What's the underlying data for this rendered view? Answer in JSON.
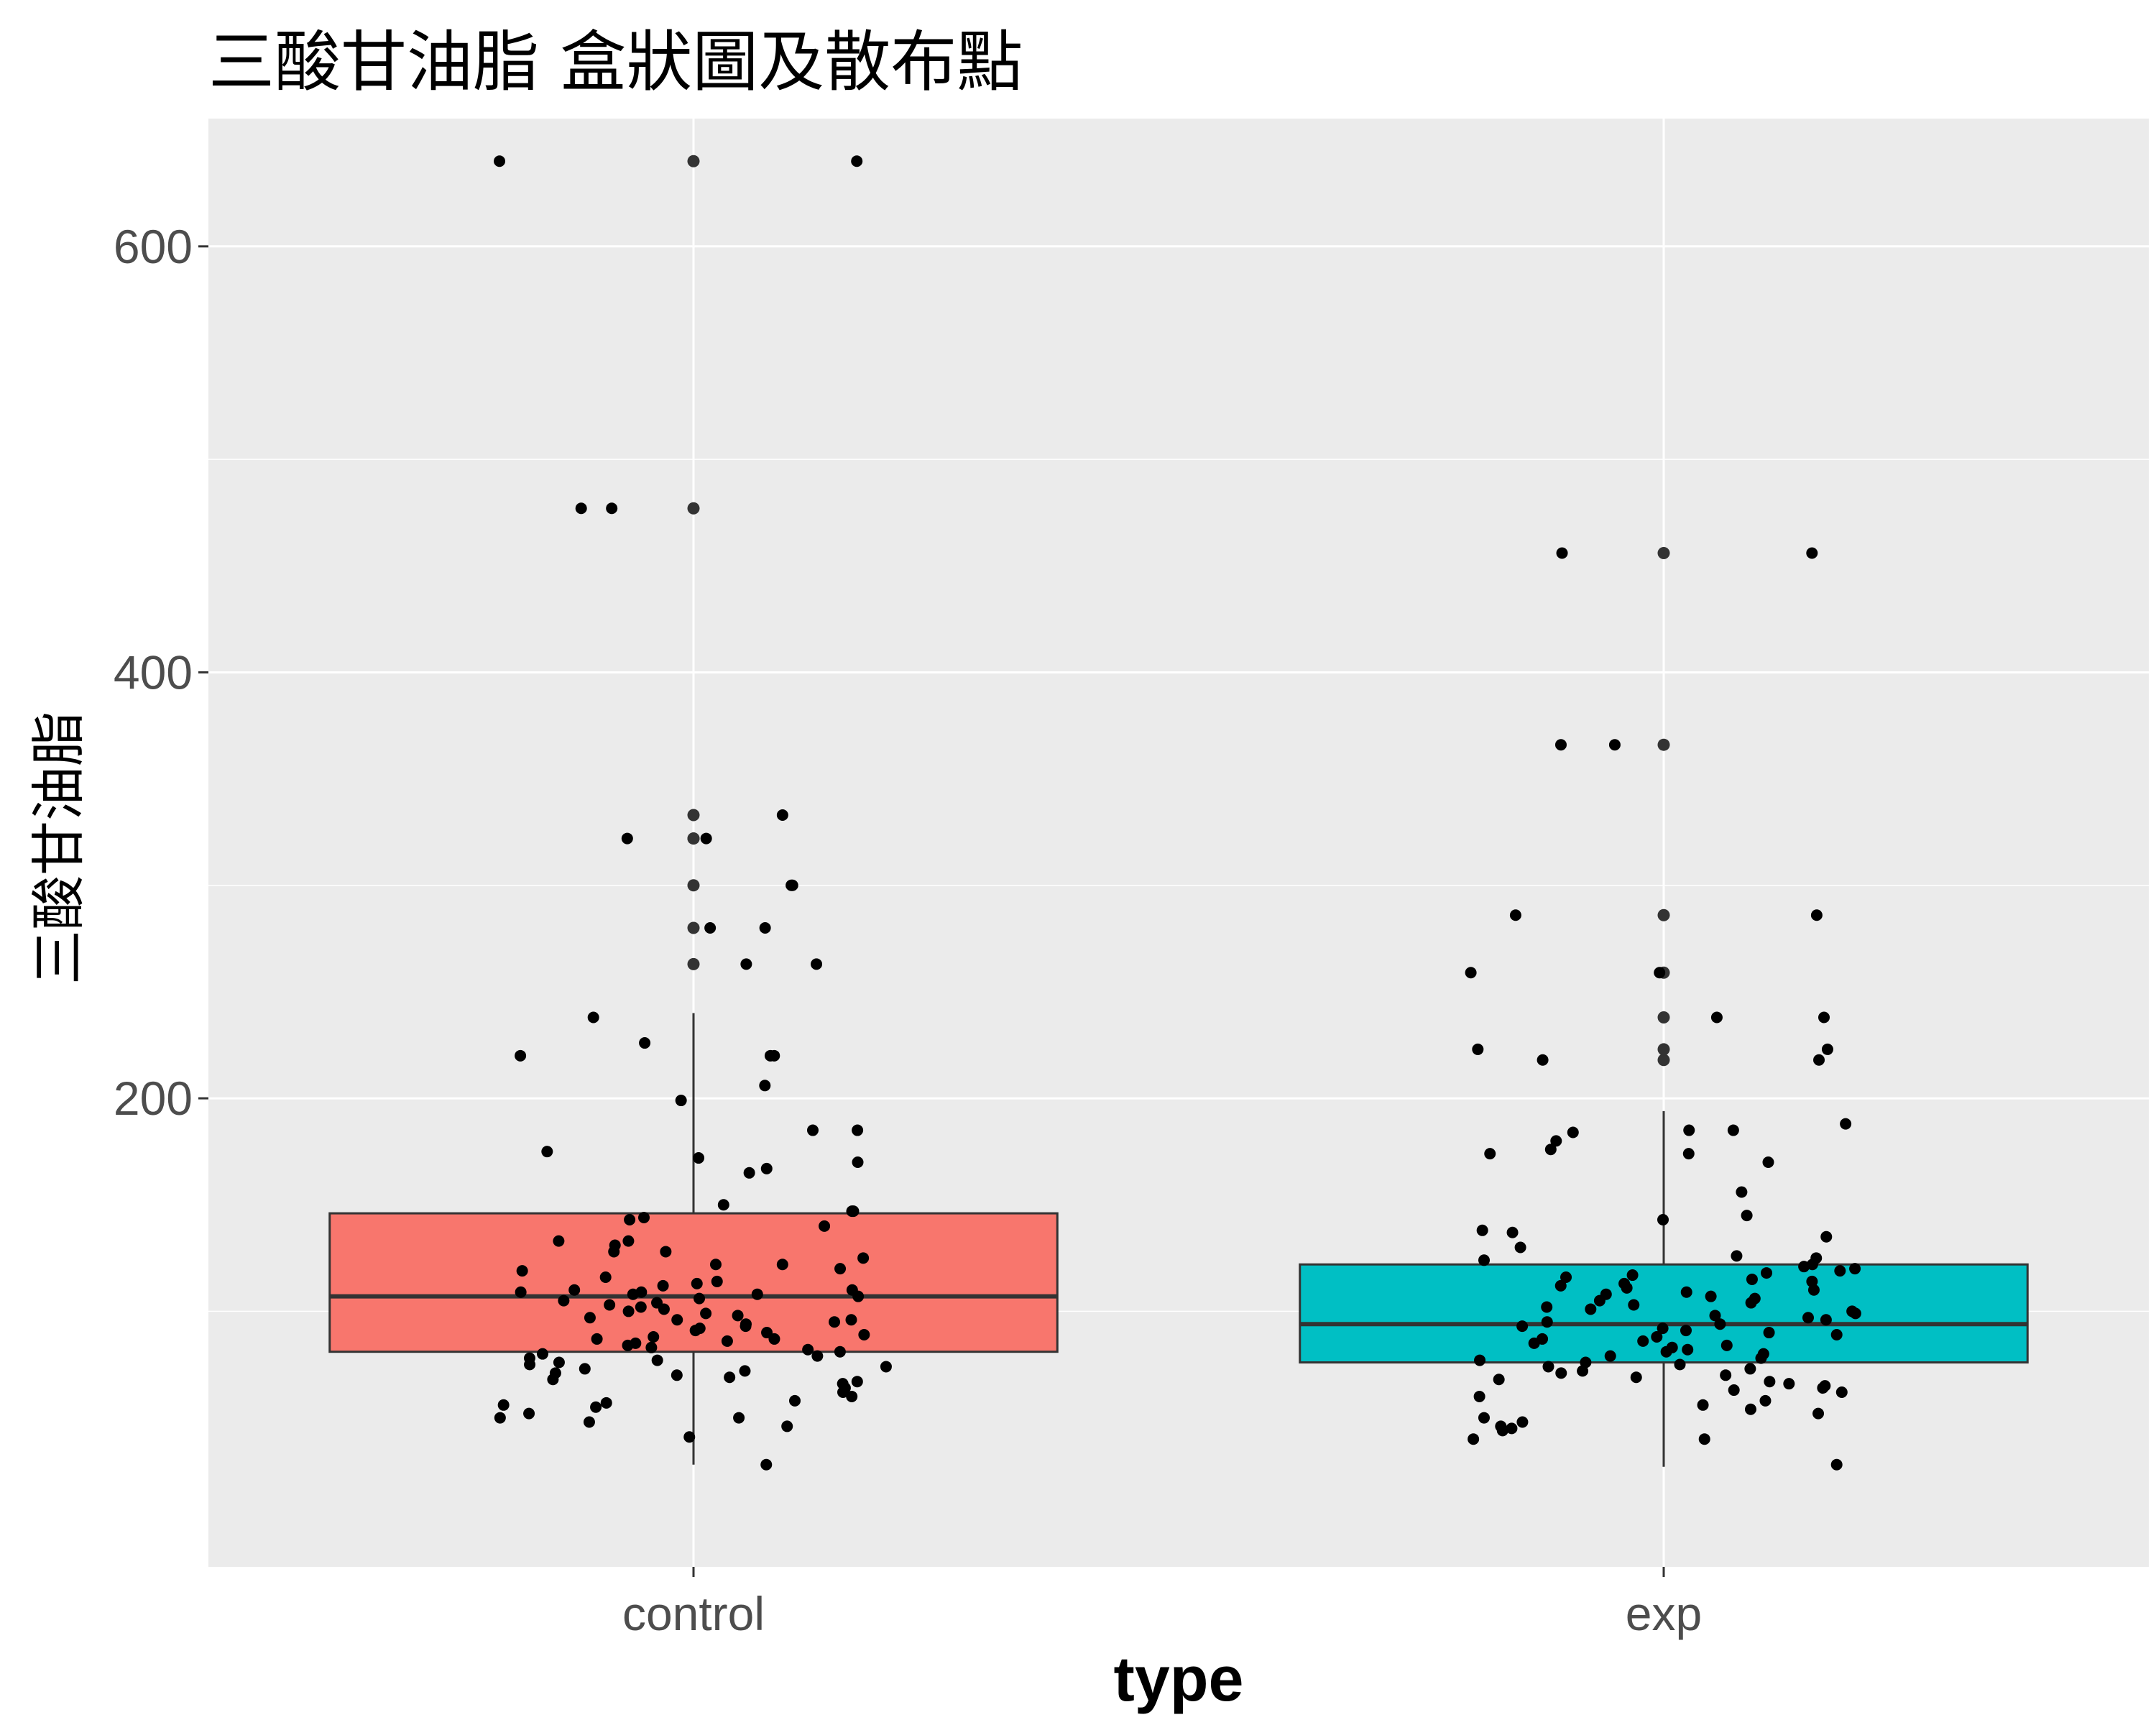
{
  "chart_data": {
    "type": "box",
    "title": "三酸甘油脂 盒狀圖及散布點",
    "xlabel": "type",
    "ylabel": "三酸甘油脂",
    "ylim": [
      -20,
      660
    ],
    "yticks": [
      200,
      400,
      600
    ],
    "grid": true,
    "legend": "none",
    "colors": {
      "panel": "#ebebeb",
      "grid": "#ffffff",
      "control": "#f8766d",
      "exp": "#00bfc4",
      "outline": "#333333"
    },
    "categories": [
      "control",
      "exp"
    ],
    "boxes": [
      {
        "name": "control",
        "whisker_low": 28,
        "q1": 81,
        "median": 107,
        "q3": 146,
        "whisker_high": 240,
        "outliers": [
          263,
          280,
          300,
          322,
          322,
          333,
          477,
          640
        ]
      },
      {
        "name": "exp",
        "whisker_low": 27,
        "q1": 76,
        "median": 94,
        "q3": 122,
        "whisker_high": 194,
        "outliers": [
          218,
          223,
          238,
          259,
          286,
          366,
          456
        ]
      }
    ],
    "points": {
      "control": [
        640,
        640,
        477,
        477,
        333,
        322,
        322,
        300,
        300,
        280,
        280,
        263,
        263,
        238,
        226,
        220,
        220,
        220,
        206,
        199,
        185,
        185,
        175,
        172,
        170,
        167,
        165,
        150,
        147,
        147,
        144,
        143,
        140,
        133,
        133,
        131,
        128,
        128,
        125,
        122,
        122,
        120,
        119,
        116,
        114,
        113,
        112,
        110,
        110,
        109,
        109,
        108,
        108,
        107,
        106,
        105,
        104,
        103,
        102,
        101,
        100,
        99,
        98,
        97,
        96,
        96,
        95,
        94,
        93,
        92,
        91,
        90,
        89,
        88,
        87,
        87,
        86,
        85,
        84,
        83,
        82,
        81,
        80,
        79,
        78,
        77,
        76,
        75,
        74,
        73,
        72,
        71,
        70,
        69,
        68,
        67,
        66,
        64,
        62,
        60,
        58,
        57,
        56,
        55,
        52,
        50,
        50,
        48,
        46,
        41,
        28
      ],
      "exp": [
        456,
        456,
        366,
        366,
        286,
        286,
        259,
        259,
        238,
        238,
        223,
        223,
        218,
        218,
        188,
        185,
        185,
        184,
        180,
        176,
        174,
        174,
        170,
        156,
        145,
        143,
        138,
        137,
        135,
        130,
        126,
        125,
        124,
        122,
        121,
        120,
        119,
        118,
        117,
        116,
        115,
        114,
        113,
        112,
        111,
        110,
        109,
        108,
        107,
        106,
        105,
        104,
        103,
        102,
        101,
        100,
        99,
        98,
        97,
        96,
        95,
        94,
        93,
        92,
        91,
        90,
        89,
        88,
        87,
        86,
        85,
        84,
        83,
        82,
        81,
        80,
        79,
        78,
        77,
        76,
        75,
        74,
        73,
        72,
        71,
        70,
        69,
        68,
        67,
        66,
        65,
        64,
        63,
        62,
        60,
        58,
        56,
        54,
        52,
        50,
        48,
        46,
        45,
        44,
        40,
        40,
        28
      ]
    }
  }
}
